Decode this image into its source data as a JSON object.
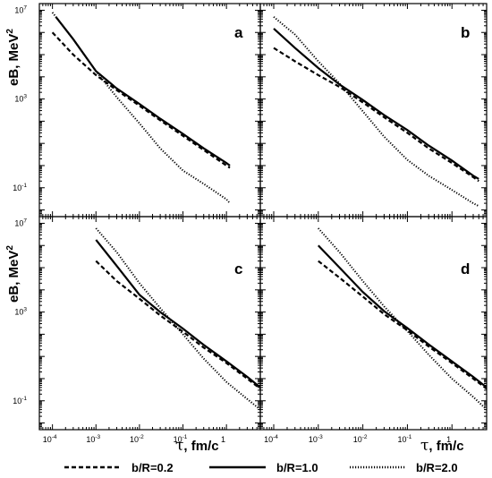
{
  "chart_data": {
    "type": "line",
    "x_scale": "log",
    "y_scale": "log",
    "xlim": [
      5e-05,
      6
    ],
    "ylim": [
      0.005,
      20000000.0
    ],
    "x_ticks": [
      {
        "value": 0.0001,
        "base": "10",
        "exp": "-4"
      },
      {
        "value": 0.001,
        "base": "10",
        "exp": "-3"
      },
      {
        "value": 0.01,
        "base": "10",
        "exp": "-2"
      },
      {
        "value": 0.1,
        "base": "10",
        "exp": "-1"
      },
      {
        "value": 1,
        "base": "1",
        "exp": ""
      }
    ],
    "y_ticks": [
      {
        "value": 0.1,
        "base": "10",
        "exp": "-1"
      },
      {
        "value": 1000,
        "base": "10",
        "exp": "3"
      },
      {
        "value": 10000000,
        "base": "10",
        "exp": "7"
      }
    ],
    "xlabel": {
      "tau": "τ",
      "rest": ", fm/c"
    },
    "ylabel": {
      "main": "eB, MeV",
      "sup": "2"
    },
    "legend": {
      "placement": "bottom",
      "entries": [
        {
          "style": "dashed",
          "label": "b/R=0.2"
        },
        {
          "style": "solid",
          "label": "b/R=1.0"
        },
        {
          "style": "dotted",
          "label": "b/R=2.0"
        }
      ]
    },
    "panels": [
      {
        "label": "a",
        "series": [
          {
            "style": "dashed",
            "points": [
              [
                0.0001,
                1000000
              ],
              [
                0.0003,
                100000
              ],
              [
                0.001,
                12000
              ],
              [
                0.003,
                2500
              ],
              [
                0.01,
                500
              ],
              [
                0.03,
                110
              ],
              [
                0.1,
                22
              ],
              [
                0.3,
                5
              ],
              [
                1,
                1
              ],
              [
                1.2,
                0.8
              ]
            ]
          },
          {
            "style": "solid",
            "points": [
              [
                0.00012,
                5000000
              ],
              [
                0.0003,
                500000
              ],
              [
                0.001,
                18000
              ],
              [
                0.003,
                3000
              ],
              [
                0.01,
                600
              ],
              [
                0.03,
                130
              ],
              [
                0.1,
                27
              ],
              [
                0.3,
                6
              ],
              [
                1,
                1.3
              ],
              [
                1.2,
                1.0
              ]
            ]
          },
          {
            "style": "dotted",
            "points": [
              [
                0.0001,
                8000000
              ],
              [
                0.0003,
                500000
              ],
              [
                0.001,
                18000
              ],
              [
                0.003,
                1200
              ],
              [
                0.01,
                80
              ],
              [
                0.03,
                6
              ],
              [
                0.1,
                0.6
              ],
              [
                0.3,
                0.15
              ],
              [
                1,
                0.03
              ],
              [
                1.2,
                0.02
              ]
            ]
          }
        ]
      },
      {
        "label": "b",
        "series": [
          {
            "style": "dashed",
            "points": [
              [
                0.0001,
                200000
              ],
              [
                0.0003,
                50000
              ],
              [
                0.001,
                12000
              ],
              [
                0.003,
                3500
              ],
              [
                0.01,
                700
              ],
              [
                0.03,
                150
              ],
              [
                0.1,
                30
              ],
              [
                0.3,
                6
              ],
              [
                1,
                1.3
              ],
              [
                3,
                0.3
              ],
              [
                4,
                0.2
              ]
            ]
          },
          {
            "style": "solid",
            "points": [
              [
                0.0001,
                1500000
              ],
              [
                0.0003,
                200000
              ],
              [
                0.001,
                25000
              ],
              [
                0.003,
                4500
              ],
              [
                0.01,
                900
              ],
              [
                0.03,
                190
              ],
              [
                0.1,
                40
              ],
              [
                0.3,
                8
              ],
              [
                1,
                1.7
              ],
              [
                3,
                0.35
              ],
              [
                4,
                0.25
              ]
            ]
          },
          {
            "style": "dotted",
            "points": [
              [
                0.0001,
                5000000
              ],
              [
                0.0003,
                800000
              ],
              [
                0.001,
                50000
              ],
              [
                0.003,
                5000
              ],
              [
                0.01,
                280
              ],
              [
                0.03,
                20
              ],
              [
                0.1,
                1.8
              ],
              [
                0.3,
                0.35
              ],
              [
                1,
                0.08
              ],
              [
                3,
                0.02
              ],
              [
                4,
                0.015
              ]
            ]
          }
        ]
      },
      {
        "label": "c",
        "series": [
          {
            "style": "dashed",
            "points": [
              [
                0.001,
                200000
              ],
              [
                0.003,
                25000
              ],
              [
                0.01,
                4000
              ],
              [
                0.03,
                700
              ],
              [
                0.1,
                130
              ],
              [
                0.3,
                25
              ],
              [
                1,
                5
              ],
              [
                3,
                1
              ],
              [
                6,
                0.35
              ]
            ]
          },
          {
            "style": "solid",
            "points": [
              [
                0.001,
                1800000
              ],
              [
                0.003,
                120000
              ],
              [
                0.01,
                6000
              ],
              [
                0.03,
                1000
              ],
              [
                0.1,
                180
              ],
              [
                0.3,
                33
              ],
              [
                1,
                6
              ],
              [
                3,
                1.2
              ],
              [
                6,
                0.4
              ]
            ]
          },
          {
            "style": "dotted",
            "points": [
              [
                0.001,
                6000000
              ],
              [
                0.003,
                500000
              ],
              [
                0.01,
                20000
              ],
              [
                0.03,
                1500
              ],
              [
                0.1,
                100
              ],
              [
                0.3,
                8
              ],
              [
                1,
                0.7
              ],
              [
                3,
                0.12
              ],
              [
                6,
                0.04
              ]
            ]
          }
        ]
      },
      {
        "label": "d",
        "series": [
          {
            "style": "dashed",
            "points": [
              [
                0.001,
                200000
              ],
              [
                0.003,
                35000
              ],
              [
                0.01,
                5000
              ],
              [
                0.03,
                800
              ],
              [
                0.1,
                150
              ],
              [
                0.3,
                28
              ],
              [
                1,
                5
              ],
              [
                3,
                1
              ],
              [
                6,
                0.35
              ]
            ]
          },
          {
            "style": "solid",
            "points": [
              [
                0.001,
                1000000
              ],
              [
                0.003,
                100000
              ],
              [
                0.01,
                8000
              ],
              [
                0.03,
                1100
              ],
              [
                0.1,
                190
              ],
              [
                0.3,
                35
              ],
              [
                1,
                6
              ],
              [
                3,
                1.2
              ],
              [
                6,
                0.4
              ]
            ]
          },
          {
            "style": "dotted",
            "points": [
              [
                0.001,
                6000000
              ],
              [
                0.003,
                500000
              ],
              [
                0.01,
                25000
              ],
              [
                0.03,
                1800
              ],
              [
                0.1,
                140
              ],
              [
                0.3,
                12
              ],
              [
                1,
                1
              ],
              [
                3,
                0.15
              ],
              [
                6,
                0.04
              ]
            ]
          }
        ]
      }
    ]
  }
}
